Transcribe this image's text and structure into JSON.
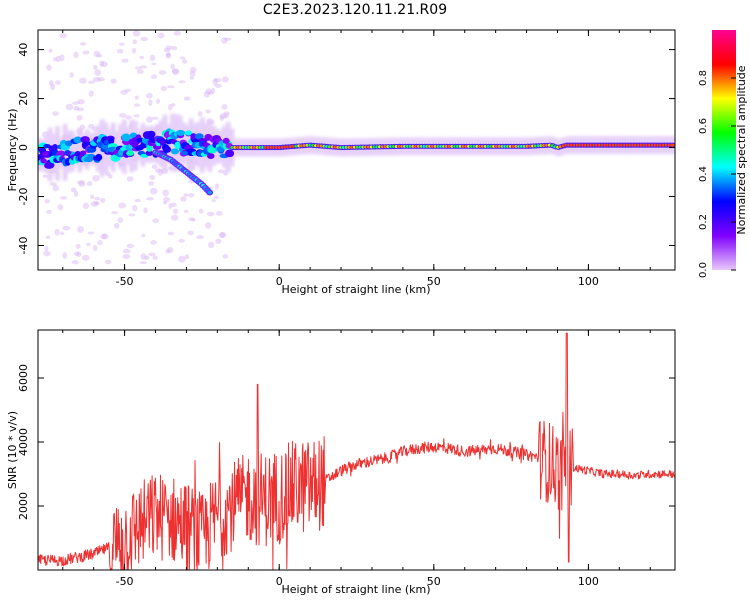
{
  "title": "C2E3.2023.120.11.21.R09",
  "chart_data": [
    {
      "type": "heatmap",
      "xlabel": "Height of straight line (km)",
      "ylabel": "Frequency (Hz)",
      "xlim": [
        -78,
        128
      ],
      "ylim": [
        -50,
        48
      ],
      "xticks": [
        -50,
        0,
        50,
        100
      ],
      "yticks": [
        -40,
        -20,
        0,
        20,
        40
      ],
      "colorbar": {
        "label": "Normalized spectral amplitude",
        "range": [
          0,
          1
        ],
        "ticks": [
          0.0,
          0.2,
          0.4,
          0.6,
          0.8
        ],
        "colors": [
          "#e8c8f8",
          "#8000ff",
          "#0000ff",
          "#00ffff",
          "#00ff00",
          "#ffff00",
          "#ff0000",
          "#ff0090"
        ]
      },
      "tracks": [
        {
          "x": [
            -75,
            -65,
            -55,
            -45,
            -35,
            -25,
            -15,
            -5,
            0,
            10,
            20,
            40,
            60,
            80,
            88,
            90,
            93,
            110,
            128
          ],
          "y": [
            -3,
            -1,
            0,
            1,
            2,
            1,
            0,
            0,
            0,
            1,
            0,
            0.5,
            0.5,
            0.5,
            1,
            0,
            1,
            1,
            1
          ]
        },
        {
          "x": [
            -40,
            -35,
            -30,
            -25,
            -22
          ],
          "y": [
            -2,
            -5,
            -10,
            -15,
            -19
          ]
        }
      ]
    },
    {
      "type": "line",
      "xlabel": "Height of straight line (km)",
      "ylabel": "SNR (10 * v/v)",
      "xlim": [
        -78,
        128
      ],
      "ylim": [
        0,
        7500
      ],
      "xticks": [
        -50,
        0,
        50,
        100
      ],
      "yticks": [
        2000,
        4000,
        6000
      ],
      "line_color": "#ee3030",
      "series": [
        {
          "name": "",
          "x": [
            -78,
            -70,
            -65,
            -60,
            -55,
            -50,
            -45,
            -40,
            -35,
            -30,
            -25,
            -20,
            -15,
            -10,
            -5,
            0,
            5,
            10,
            15,
            20,
            25,
            30,
            35,
            40,
            45,
            50,
            55,
            60,
            65,
            70,
            75,
            80,
            85,
            90,
            92,
            93,
            95,
            100,
            105,
            110,
            115,
            120,
            125,
            128
          ],
          "y": [
            300,
            300,
            400,
            500,
            700,
            1000,
            1400,
            1700,
            1600,
            1400,
            1000,
            1700,
            2000,
            2300,
            2200,
            2300,
            2600,
            2600,
            2800,
            3100,
            3300,
            3400,
            3500,
            3700,
            3800,
            3850,
            3800,
            3700,
            3750,
            3800,
            3700,
            3600,
            3500,
            3200,
            2800,
            3400,
            3200,
            3100,
            3000,
            3000,
            2950,
            3000,
            3000,
            3000
          ]
        }
      ]
    }
  ]
}
